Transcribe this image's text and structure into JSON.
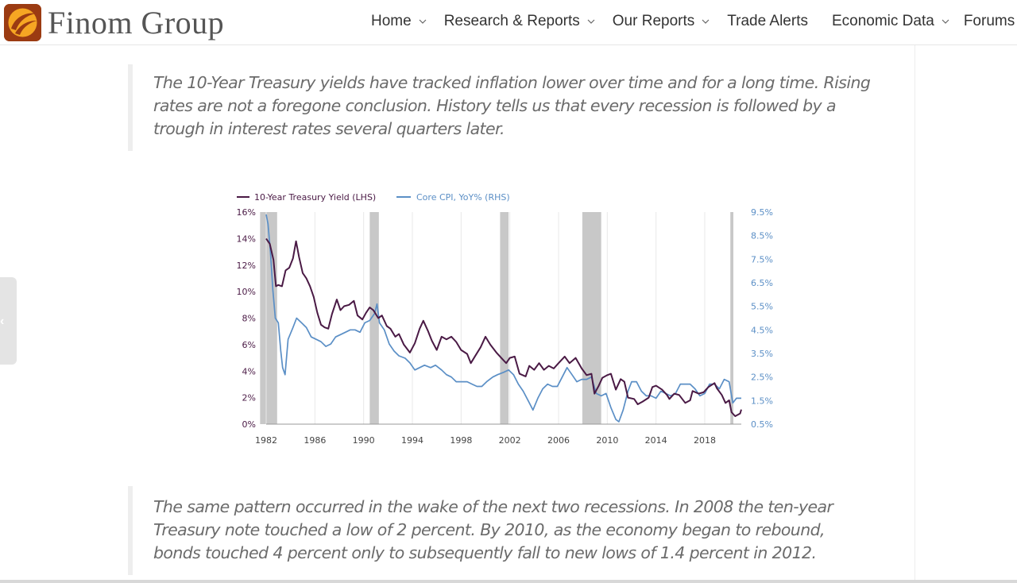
{
  "brand": {
    "name": "Finom Group",
    "colors": {
      "logo_bg": "#9b3b12",
      "logo_mark": "#f6a623"
    }
  },
  "nav": {
    "items": [
      {
        "label": "Home",
        "has_dropdown": true
      },
      {
        "label": "Research & Reports",
        "has_dropdown": true
      },
      {
        "label": "Our Reports",
        "has_dropdown": true
      },
      {
        "label": "Trade Alerts",
        "has_dropdown": false
      },
      {
        "label": "Economic Data",
        "has_dropdown": true
      },
      {
        "label": "Forums",
        "has_dropdown": false
      }
    ]
  },
  "article": {
    "quote1": "The 10-Year Treasury yields have tracked inflation lower over time and for a long time. Rising rates are not a foregone conclusion. History tells us that every recession is followed by a trough in interest rates several quarters later.",
    "quote2": "The same pattern occurred in the wake of the next two recessions. In 2008 the ten-year Treasury note touched a low of 2 percent. By 2010, as the economy began to rebound, bonds touched 4 percent only to subsequently fall to new lows of 1.4 percent in 2012."
  },
  "chart_data": {
    "type": "line",
    "title": "",
    "legend_position": "top-left",
    "grid": "vertical",
    "x_ticks": [
      "1982",
      "1986",
      "1990",
      "1994",
      "1998",
      "2002",
      "2006",
      "2010",
      "2014",
      "2018"
    ],
    "x_range": [
      1982,
      2021
    ],
    "y_left": {
      "ticks": [
        "16%",
        "14%",
        "12%",
        "10%",
        "8%",
        "6%",
        "4%",
        "2%",
        "0%"
      ],
      "range": [
        0,
        16
      ]
    },
    "y_right": {
      "ticks": [
        "9.5%",
        "8.5%",
        "7.5%",
        "6.5%",
        "5.5%",
        "4.5%",
        "3.5%",
        "2.5%",
        "1.5%",
        "0.5%"
      ],
      "range": [
        0.5,
        9.5
      ]
    },
    "recessions": [
      [
        1981.5,
        1982.9
      ],
      [
        1990.5,
        1991.25
      ],
      [
        2001.2,
        2001.9
      ],
      [
        2007.95,
        2009.5
      ],
      [
        2020.1,
        2020.35
      ]
    ],
    "series": [
      {
        "name": "10-Year Treasury Yield (LHS)",
        "axis": "left",
        "color": "#4a1a45",
        "points": [
          [
            1982.0,
            14.0
          ],
          [
            1982.3,
            13.6
          ],
          [
            1982.6,
            12.4
          ],
          [
            1982.8,
            10.4
          ],
          [
            1983.0,
            10.5
          ],
          [
            1983.3,
            10.4
          ],
          [
            1983.6,
            11.6
          ],
          [
            1983.9,
            11.8
          ],
          [
            1984.2,
            12.5
          ],
          [
            1984.45,
            13.8
          ],
          [
            1984.7,
            12.6
          ],
          [
            1985.0,
            11.4
          ],
          [
            1985.3,
            11.0
          ],
          [
            1985.6,
            10.4
          ],
          [
            1985.9,
            9.6
          ],
          [
            1986.2,
            8.4
          ],
          [
            1986.5,
            7.5
          ],
          [
            1986.8,
            7.3
          ],
          [
            1987.1,
            7.2
          ],
          [
            1987.4,
            8.3
          ],
          [
            1987.8,
            9.4
          ],
          [
            1988.1,
            8.6
          ],
          [
            1988.4,
            8.9
          ],
          [
            1988.8,
            9.0
          ],
          [
            1989.2,
            9.3
          ],
          [
            1989.5,
            8.2
          ],
          [
            1989.9,
            7.9
          ],
          [
            1990.2,
            8.4
          ],
          [
            1990.5,
            8.8
          ],
          [
            1990.8,
            8.6
          ],
          [
            1991.2,
            8.0
          ],
          [
            1991.5,
            8.2
          ],
          [
            1991.9,
            7.4
          ],
          [
            1992.2,
            7.2
          ],
          [
            1992.6,
            6.6
          ],
          [
            1992.9,
            6.8
          ],
          [
            1993.3,
            6.0
          ],
          [
            1993.8,
            5.4
          ],
          [
            1994.2,
            6.1
          ],
          [
            1994.6,
            7.2
          ],
          [
            1994.9,
            7.8
          ],
          [
            1995.3,
            7.0
          ],
          [
            1995.6,
            6.3
          ],
          [
            1996.0,
            5.6
          ],
          [
            1996.4,
            6.6
          ],
          [
            1996.8,
            6.4
          ],
          [
            1997.2,
            6.6
          ],
          [
            1997.6,
            6.2
          ],
          [
            1998.0,
            5.6
          ],
          [
            1998.5,
            5.3
          ],
          [
            1998.8,
            4.6
          ],
          [
            1999.2,
            5.2
          ],
          [
            1999.6,
            5.8
          ],
          [
            2000.0,
            6.6
          ],
          [
            2000.4,
            6.0
          ],
          [
            2000.9,
            5.4
          ],
          [
            2001.3,
            5.0
          ],
          [
            2001.7,
            4.6
          ],
          [
            2002.0,
            5.0
          ],
          [
            2002.4,
            5.1
          ],
          [
            2002.8,
            3.8
          ],
          [
            2003.3,
            3.6
          ],
          [
            2003.6,
            4.4
          ],
          [
            2004.0,
            4.1
          ],
          [
            2004.4,
            4.6
          ],
          [
            2004.8,
            4.1
          ],
          [
            2005.2,
            4.4
          ],
          [
            2005.6,
            4.2
          ],
          [
            2006.0,
            4.6
          ],
          [
            2006.5,
            5.1
          ],
          [
            2006.9,
            4.6
          ],
          [
            2007.4,
            5.0
          ],
          [
            2007.9,
            4.2
          ],
          [
            2008.3,
            3.7
          ],
          [
            2008.7,
            3.8
          ],
          [
            2008.95,
            2.3
          ],
          [
            2009.3,
            2.9
          ],
          [
            2009.6,
            3.5
          ],
          [
            2010.0,
            3.7
          ],
          [
            2010.3,
            3.8
          ],
          [
            2010.7,
            2.6
          ],
          [
            2011.1,
            3.4
          ],
          [
            2011.4,
            3.2
          ],
          [
            2011.7,
            2.0
          ],
          [
            2012.2,
            1.9
          ],
          [
            2012.5,
            1.5
          ],
          [
            2012.9,
            1.7
          ],
          [
            2013.4,
            2.0
          ],
          [
            2013.7,
            2.8
          ],
          [
            2014.0,
            2.9
          ],
          [
            2014.5,
            2.6
          ],
          [
            2014.9,
            2.2
          ],
          [
            2015.1,
            1.9
          ],
          [
            2015.5,
            2.3
          ],
          [
            2015.9,
            2.2
          ],
          [
            2016.4,
            1.6
          ],
          [
            2016.8,
            1.8
          ],
          [
            2017.0,
            2.5
          ],
          [
            2017.5,
            2.3
          ],
          [
            2017.9,
            2.4
          ],
          [
            2018.3,
            2.8
          ],
          [
            2018.8,
            3.1
          ],
          [
            2019.0,
            2.7
          ],
          [
            2019.4,
            2.2
          ],
          [
            2019.7,
            1.6
          ],
          [
            2020.0,
            1.8
          ],
          [
            2020.2,
            0.9
          ],
          [
            2020.5,
            0.6
          ],
          [
            2020.9,
            0.8
          ],
          [
            2021.0,
            1.1
          ]
        ]
      },
      {
        "name": "Core CPI, YoY% (RHS)",
        "axis": "right",
        "color": "#5b8fc6",
        "points": [
          [
            1982.0,
            9.4
          ],
          [
            1982.15,
            9.0
          ],
          [
            1982.35,
            7.8
          ],
          [
            1982.55,
            6.2
          ],
          [
            1982.75,
            5.0
          ],
          [
            1983.0,
            4.8
          ],
          [
            1983.2,
            3.6
          ],
          [
            1983.35,
            2.9
          ],
          [
            1983.55,
            2.6
          ],
          [
            1983.8,
            4.1
          ],
          [
            1984.2,
            4.6
          ],
          [
            1984.5,
            5.0
          ],
          [
            1984.9,
            4.8
          ],
          [
            1985.3,
            4.6
          ],
          [
            1985.7,
            4.2
          ],
          [
            1986.1,
            4.1
          ],
          [
            1986.5,
            4.0
          ],
          [
            1986.9,
            3.8
          ],
          [
            1987.3,
            3.9
          ],
          [
            1987.7,
            4.2
          ],
          [
            1988.1,
            4.3
          ],
          [
            1988.5,
            4.4
          ],
          [
            1988.9,
            4.5
          ],
          [
            1989.3,
            4.5
          ],
          [
            1989.7,
            4.4
          ],
          [
            1990.1,
            4.8
          ],
          [
            1990.5,
            4.9
          ],
          [
            1990.9,
            5.2
          ],
          [
            1991.1,
            5.6
          ],
          [
            1991.3,
            4.8
          ],
          [
            1991.7,
            4.5
          ],
          [
            1992.1,
            3.9
          ],
          [
            1992.5,
            3.6
          ],
          [
            1992.9,
            3.4
          ],
          [
            1993.4,
            3.3
          ],
          [
            1993.8,
            3.1
          ],
          [
            1994.2,
            2.8
          ],
          [
            1994.6,
            2.9
          ],
          [
            1995.0,
            3.0
          ],
          [
            1995.5,
            2.9
          ],
          [
            1995.9,
            3.0
          ],
          [
            1996.4,
            2.8
          ],
          [
            1996.8,
            2.6
          ],
          [
            1997.2,
            2.5
          ],
          [
            1997.6,
            2.3
          ],
          [
            1998.0,
            2.3
          ],
          [
            1998.5,
            2.3
          ],
          [
            1998.9,
            2.2
          ],
          [
            1999.3,
            2.1
          ],
          [
            1999.7,
            2.1
          ],
          [
            2000.1,
            2.3
          ],
          [
            2000.6,
            2.5
          ],
          [
            2001.0,
            2.6
          ],
          [
            2001.5,
            2.7
          ],
          [
            2001.9,
            2.8
          ],
          [
            2002.3,
            2.6
          ],
          [
            2002.7,
            2.2
          ],
          [
            2003.1,
            1.9
          ],
          [
            2003.5,
            1.5
          ],
          [
            2003.9,
            1.1
          ],
          [
            2004.3,
            1.6
          ],
          [
            2004.7,
            2.0
          ],
          [
            2005.1,
            2.2
          ],
          [
            2005.5,
            2.1
          ],
          [
            2005.9,
            2.1
          ],
          [
            2006.3,
            2.5
          ],
          [
            2006.7,
            2.9
          ],
          [
            2007.1,
            2.6
          ],
          [
            2007.5,
            2.3
          ],
          [
            2007.9,
            2.4
          ],
          [
            2008.3,
            2.4
          ],
          [
            2008.7,
            2.5
          ],
          [
            2009.1,
            1.8
          ],
          [
            2009.5,
            1.7
          ],
          [
            2009.9,
            1.8
          ],
          [
            2010.3,
            1.2
          ],
          [
            2010.7,
            0.7
          ],
          [
            2010.95,
            0.6
          ],
          [
            2011.3,
            1.1
          ],
          [
            2011.7,
            1.9
          ],
          [
            2012.0,
            2.3
          ],
          [
            2012.4,
            2.3
          ],
          [
            2012.8,
            1.9
          ],
          [
            2013.2,
            1.7
          ],
          [
            2013.6,
            1.7
          ],
          [
            2014.0,
            1.6
          ],
          [
            2014.4,
            1.9
          ],
          [
            2014.8,
            1.8
          ],
          [
            2015.2,
            1.7
          ],
          [
            2015.6,
            1.8
          ],
          [
            2016.0,
            2.2
          ],
          [
            2016.4,
            2.2
          ],
          [
            2016.8,
            2.2
          ],
          [
            2017.2,
            2.0
          ],
          [
            2017.6,
            1.7
          ],
          [
            2018.0,
            1.8
          ],
          [
            2018.4,
            2.2
          ],
          [
            2018.8,
            2.2
          ],
          [
            2019.2,
            2.0
          ],
          [
            2019.6,
            2.4
          ],
          [
            2020.0,
            2.3
          ],
          [
            2020.3,
            1.4
          ],
          [
            2020.6,
            1.6
          ],
          [
            2021.0,
            1.6
          ]
        ]
      }
    ]
  }
}
